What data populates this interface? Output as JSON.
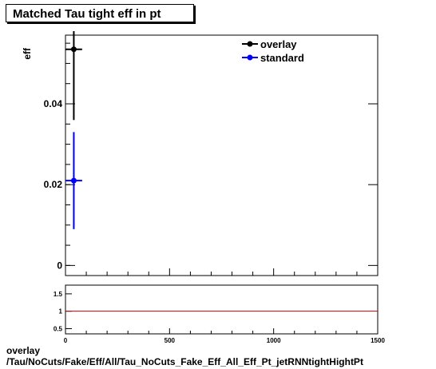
{
  "title": "Matched Tau tight eff in pt",
  "footer": {
    "line1": "overlay",
    "line2": "/Tau/NoCuts/Fake/Eff/All/Tau_NoCuts_Fake_Eff_All_Eff_Pt_jetRNNtightHightPt"
  },
  "chart_data": [
    {
      "type": "scatter",
      "title": "Matched Tau tight eff in pt",
      "ylabel": "eff",
      "xlim": [
        0,
        1500
      ],
      "ylim": [
        -0.0025,
        0.057
      ],
      "yticks": [
        0,
        0.02,
        0.04
      ],
      "ytick_labels": [
        "0",
        "0.02",
        "0.04"
      ],
      "legend": {
        "placement": "top-right"
      },
      "series": [
        {
          "name": "overlay",
          "color": "#000000",
          "points": [
            {
              "x": 40,
              "xerr": 40,
              "y": 0.0535,
              "yerr_low": 0.0175,
              "yerr_high": 0.0045
            }
          ]
        },
        {
          "name": "standard",
          "color": "#0000ff",
          "points": [
            {
              "x": 40,
              "xerr": 40,
              "y": 0.021,
              "yerr_low": 0.012,
              "yerr_high": 0.012
            }
          ]
        }
      ]
    },
    {
      "type": "line",
      "xlim": [
        0,
        1500
      ],
      "ylim": [
        0.35,
        1.75
      ],
      "xticks": [
        0,
        500,
        1000,
        1500
      ],
      "xtick_labels": [
        "0",
        "500",
        "1000",
        "1500"
      ],
      "yticks": [
        0.5,
        1,
        1.5
      ],
      "ytick_labels": [
        "0.5",
        "1",
        "1.5"
      ],
      "reference_line": {
        "y": 1,
        "color": "#cc0000"
      }
    }
  ]
}
